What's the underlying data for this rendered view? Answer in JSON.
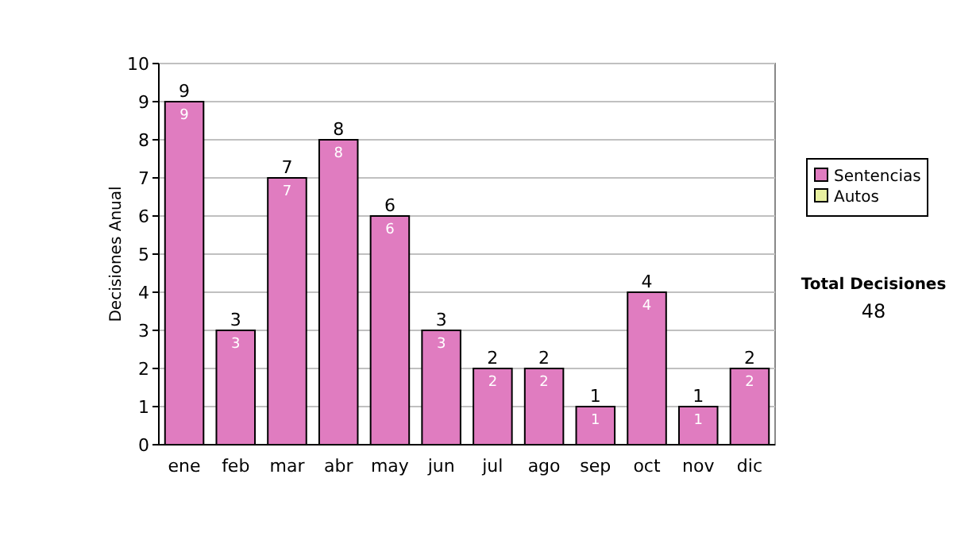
{
  "chart_data": {
    "type": "bar",
    "ylabel": "Decisiones Anual",
    "categories": [
      "ene",
      "feb",
      "mar",
      "abr",
      "may",
      "jun",
      "jul",
      "ago",
      "sep",
      "oct",
      "nov",
      "dic"
    ],
    "series": [
      {
        "name": "Sentencias",
        "color": "#e07cc0",
        "values": [
          9,
          3,
          7,
          8,
          6,
          3,
          2,
          2,
          1,
          4,
          1,
          2
        ],
        "value_labels": [
          "9",
          "3",
          "7",
          "8",
          "6",
          "3",
          "2",
          "2",
          "1",
          "4",
          "1",
          "2"
        ]
      },
      {
        "name": "Autos",
        "color": "#e8f0a0",
        "values": [
          0,
          0,
          0,
          0,
          0,
          0,
          0,
          0,
          0,
          0,
          0,
          0
        ]
      }
    ],
    "stacked": true,
    "totals": [
      "9",
      "3",
      "7",
      "8",
      "6",
      "3",
      "2",
      "2",
      "1",
      "4",
      "1",
      "2"
    ],
    "ylim": [
      0,
      10
    ],
    "yticks": [
      0,
      1,
      2,
      3,
      4,
      5,
      6,
      7,
      8,
      9,
      10
    ],
    "grid": "y",
    "legend": "right",
    "annotations": [
      "Total Decisiones",
      "48"
    ]
  }
}
